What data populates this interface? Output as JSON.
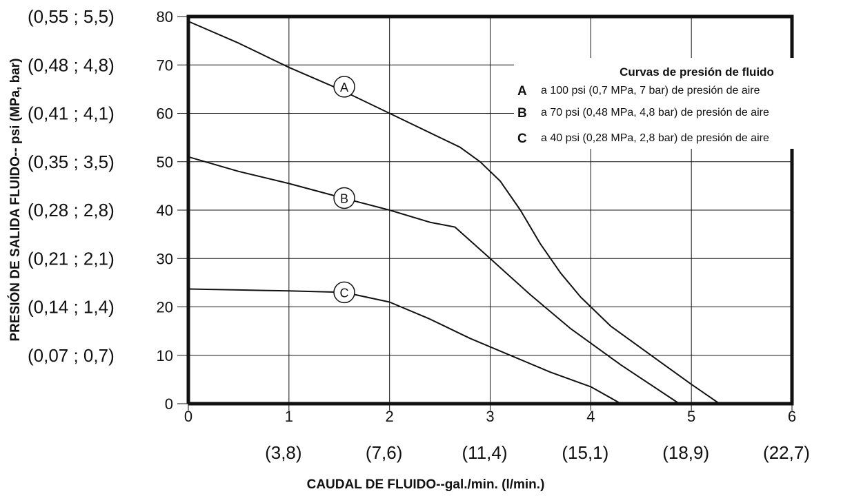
{
  "chart_data": {
    "type": "line",
    "title": "",
    "xlabel": "CAUDAL DE FLUIDO--gal./min. (l/min.)",
    "ylabel": "PRESIÓN DE SALIDA FLUIDO-- psi (MPa, bar)",
    "xlim": [
      0,
      6
    ],
    "ylim": [
      0,
      80
    ],
    "grid": true,
    "x_ticks": [
      0,
      1,
      2,
      3,
      4,
      5,
      6
    ],
    "x_tick_labels": [
      "0",
      "1",
      "2",
      "3",
      "4",
      "5",
      "6"
    ],
    "x_alt_tick_labels": [
      "",
      "(3,8)",
      "(7,6)",
      "(11,4)",
      "(15,1)",
      "(18,9)",
      "(22,7)"
    ],
    "y_ticks": [
      0,
      10,
      20,
      30,
      40,
      50,
      60,
      70,
      80
    ],
    "y_tick_labels": [
      "0",
      "10",
      "20",
      "30",
      "40",
      "50",
      "60",
      "70",
      "80"
    ],
    "y_alt_tick_labels": [
      "",
      "(0,07 ; 0,7)",
      "(0,14 ; 1,4)",
      "(0,21 ; 2,1)",
      "(0,28 ; 2,8)",
      "(0,35 ; 3,5)",
      "(0,41 ; 4,1)",
      "(0,48 ; 4,8)",
      "(0,55 ; 5,5)"
    ],
    "legend": {
      "title": "Curvas de presión de fluido",
      "placement": "top-right",
      "entries": [
        {
          "key": "A",
          "text": "a 100 psi (0,7 MPa, 7 bar) de presión de aire"
        },
        {
          "key": "B",
          "text": "a 70 psi (0,48 MPa, 4,8 bar) de presión de aire"
        },
        {
          "key": "C",
          "text": "a 40 psi (0,28 MPa, 2,8 bar) de presión de aire"
        }
      ]
    },
    "series": [
      {
        "name": "A",
        "label_at": [
          1.55,
          65.5
        ],
        "points": [
          [
            0,
            79
          ],
          [
            0.5,
            74.5
          ],
          [
            1.0,
            69.5
          ],
          [
            1.5,
            65
          ],
          [
            2.0,
            60
          ],
          [
            2.5,
            55
          ],
          [
            2.7,
            53
          ],
          [
            2.9,
            50
          ],
          [
            3.1,
            46
          ],
          [
            3.3,
            40
          ],
          [
            3.5,
            33
          ],
          [
            3.7,
            27
          ],
          [
            3.9,
            22
          ],
          [
            4.2,
            16
          ],
          [
            4.6,
            10
          ],
          [
            5.0,
            4
          ],
          [
            5.28,
            0
          ]
        ]
      },
      {
        "name": "B",
        "label_at": [
          1.55,
          42.5
        ],
        "points": [
          [
            0,
            51
          ],
          [
            0.5,
            48
          ],
          [
            1.0,
            45.5
          ],
          [
            1.5,
            42.7
          ],
          [
            2.0,
            40
          ],
          [
            2.4,
            37.5
          ],
          [
            2.65,
            36.5
          ],
          [
            3.0,
            30
          ],
          [
            3.4,
            22.5
          ],
          [
            3.8,
            15.5
          ],
          [
            4.3,
            8
          ],
          [
            4.88,
            0
          ]
        ]
      },
      {
        "name": "C",
        "label_at": [
          1.55,
          23
        ],
        "points": [
          [
            0,
            23.7
          ],
          [
            0.5,
            23.5
          ],
          [
            1.0,
            23.3
          ],
          [
            1.55,
            23
          ],
          [
            2.0,
            21
          ],
          [
            2.4,
            17.5
          ],
          [
            2.8,
            13.5
          ],
          [
            3.2,
            10
          ],
          [
            3.6,
            6.5
          ],
          [
            4.0,
            3.5
          ],
          [
            4.3,
            0
          ]
        ]
      }
    ]
  }
}
